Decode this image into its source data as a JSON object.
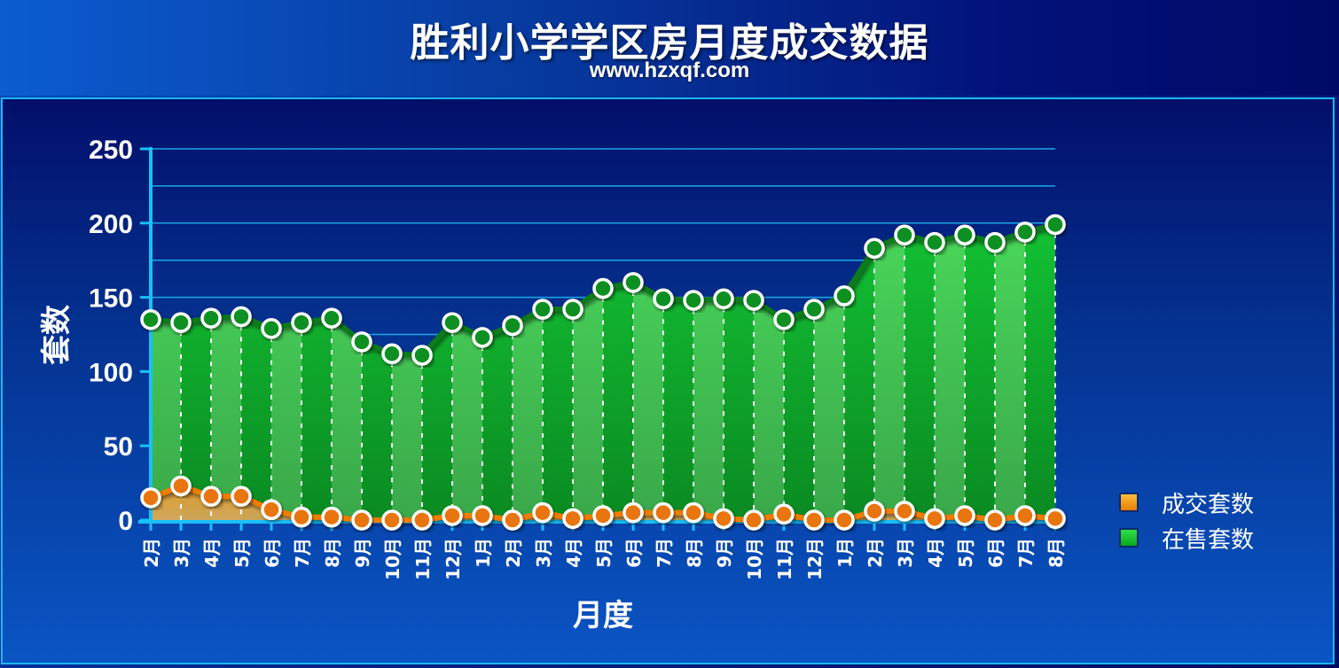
{
  "header": {
    "title": "胜利小学学区房月度成交数据",
    "subtitle": "www.hzxqf.com"
  },
  "colors": {
    "deal": "#f07c00",
    "onsale": "#11c62a",
    "grid": "#19a8e8"
  },
  "chart_data": {
    "type": "area",
    "title": "胜利小学学区房月度成交数据",
    "xlabel": "月度",
    "ylabel": "套数",
    "ylim": [
      0,
      250
    ],
    "yticks": [
      0,
      50,
      100,
      150,
      200,
      250
    ],
    "grid": true,
    "legend_position": "right",
    "categories": [
      "2月",
      "3月",
      "4月",
      "5月",
      "6月",
      "7月",
      "8月",
      "9月",
      "10月",
      "11月",
      "12月",
      "1月",
      "2月",
      "3月",
      "4月",
      "5月",
      "6月",
      "7月",
      "8月",
      "9月",
      "10月",
      "11月",
      "12月",
      "1月",
      "2月",
      "3月",
      "4月",
      "5月",
      "6月",
      "7月",
      "8月"
    ],
    "series": [
      {
        "name": "成交套数",
        "values": [
          15,
          23,
          16,
          16,
          7,
          2,
          2,
          0,
          0,
          0,
          3,
          3,
          0,
          5,
          1,
          3,
          5,
          5,
          5,
          1,
          0,
          4,
          0,
          0,
          6,
          6,
          1,
          3,
          0,
          3,
          1
        ]
      },
      {
        "name": "在售套数",
        "values": [
          135,
          133,
          136,
          137,
          129,
          133,
          136,
          120,
          112,
          111,
          133,
          123,
          131,
          142,
          142,
          156,
          160,
          149,
          148,
          149,
          148,
          135,
          142,
          151,
          183,
          192,
          187,
          192,
          187,
          194,
          199
        ]
      }
    ]
  }
}
